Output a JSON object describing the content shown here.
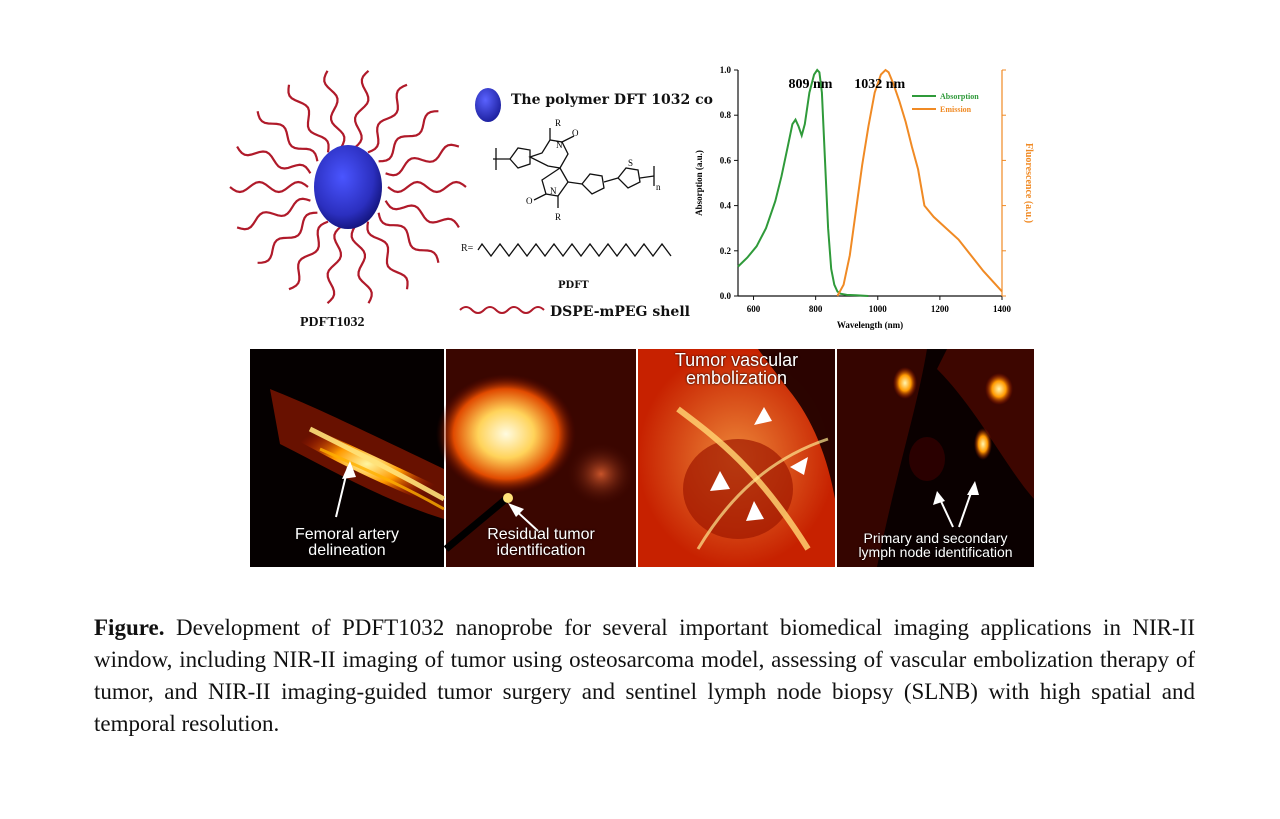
{
  "nanoparticle": {
    "label": "PDFT1032",
    "core_color": "#2b2fbf",
    "chain_color": "#b01a2a"
  },
  "chemistry": {
    "legend_polymer": "The polymer DFT 1032 co",
    "structure_label": "PDFT",
    "r_label": "R=",
    "shell_label": "DSPE-mPEG shell",
    "atom_labels": {
      "r_top": "R",
      "r_bottom": "R",
      "n_top": "N",
      "n_bottom": "N",
      "o_top": "O",
      "o_bottom": "O",
      "s": "S",
      "n_repeat": "n"
    }
  },
  "chart_data": {
    "type": "line",
    "title": "",
    "xlabel": "Wavelength (nm)",
    "ylabel": "Absorption (a.u.)",
    "y2label": "Fluorescence (a.u.)",
    "xlim": [
      550,
      1400
    ],
    "ylim": [
      0,
      1.0
    ],
    "xticks": [
      600,
      800,
      1000,
      1200,
      1400
    ],
    "yticks": [
      0.0,
      0.2,
      0.4,
      0.6,
      0.8,
      1.0
    ],
    "annotations": [
      {
        "text": "809 nm",
        "x": 809
      },
      {
        "text": "1032 nm",
        "x": 1032
      }
    ],
    "legend_position": "top-right",
    "series": [
      {
        "name": "Absorption",
        "color": "#2f9a3a",
        "x": [
          550,
          580,
          610,
          640,
          670,
          690,
          710,
          725,
          735,
          745,
          755,
          765,
          780,
          795,
          805,
          812,
          820,
          830,
          840,
          850,
          860,
          870,
          880,
          900,
          930,
          970
        ],
        "y": [
          0.13,
          0.17,
          0.22,
          0.3,
          0.42,
          0.53,
          0.66,
          0.76,
          0.78,
          0.75,
          0.71,
          0.76,
          0.9,
          0.98,
          1.0,
          0.99,
          0.9,
          0.6,
          0.3,
          0.12,
          0.05,
          0.02,
          0.01,
          0.005,
          0.003,
          0.0
        ]
      },
      {
        "name": "Emission",
        "color": "#f08a24",
        "x": [
          870,
          890,
          910,
          930,
          950,
          970,
          990,
          1010,
          1025,
          1035,
          1050,
          1070,
          1090,
          1110,
          1130,
          1150,
          1180,
          1220,
          1260,
          1300,
          1340,
          1380,
          1400
        ],
        "y": [
          0.0,
          0.05,
          0.18,
          0.38,
          0.58,
          0.75,
          0.9,
          0.98,
          1.0,
          0.99,
          0.94,
          0.86,
          0.77,
          0.66,
          0.56,
          0.4,
          0.35,
          0.3,
          0.25,
          0.18,
          0.11,
          0.05,
          0.02
        ]
      }
    ]
  },
  "images": [
    {
      "caption_line1": "Femoral artery",
      "caption_line2": "delineation"
    },
    {
      "caption_line1": "Residual tumor",
      "caption_line2": "identification"
    },
    {
      "caption_line1": "Tumor vascular",
      "caption_line2": "embolization"
    },
    {
      "caption_line1": "Primary and secondary",
      "caption_line2": "lymph node identification"
    }
  ],
  "caption": {
    "lead": "Figure.",
    "text": "Development of PDFT1032 nanoprobe for several important biomedical imaging applications in NIR-II window, including NIR-II imaging of tumor using osteosarcoma model, assessing of vascular embolization therapy of tumor, and NIR-II imaging-guided tumor surgery and sentinel lymph node biopsy (SLNB) with high spatial and temporal resolution."
  }
}
